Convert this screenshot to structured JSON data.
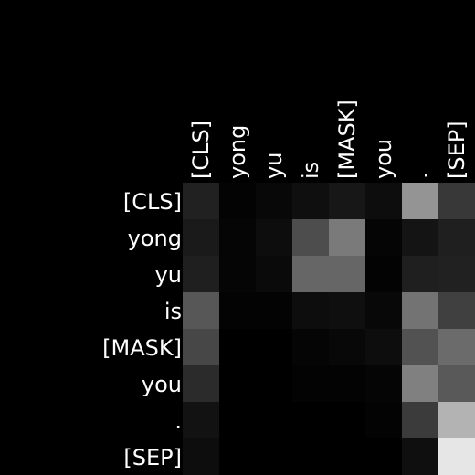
{
  "chart_data": {
    "type": "heatmap",
    "title": "",
    "xlabel": "",
    "ylabel": "",
    "x_tokens": [
      "[CLS]",
      "yong",
      "yu",
      "is",
      "[MASK]",
      "you",
      ".",
      "[SEP]"
    ],
    "y_tokens": [
      "[CLS]",
      "yong",
      "yu",
      "is",
      "[MASK]",
      "you",
      ".",
      "[SEP]"
    ],
    "x_labels_position": "top",
    "x_labels_rotation": "vertical",
    "y_labels_position": "left",
    "colormap": "grayscale",
    "vmin": 0,
    "vmax": 1,
    "values": [
      [
        0.13,
        0.01,
        0.03,
        0.06,
        0.09,
        0.05,
        0.58,
        0.22
      ],
      [
        0.1,
        0.02,
        0.05,
        0.3,
        0.48,
        0.02,
        0.08,
        0.12
      ],
      [
        0.12,
        0.02,
        0.04,
        0.4,
        0.4,
        0.01,
        0.12,
        0.13
      ],
      [
        0.34,
        0.01,
        0.01,
        0.05,
        0.06,
        0.03,
        0.45,
        0.25
      ],
      [
        0.28,
        0.0,
        0.0,
        0.02,
        0.03,
        0.05,
        0.32,
        0.42
      ],
      [
        0.17,
        0.0,
        0.0,
        0.01,
        0.01,
        0.02,
        0.5,
        0.35
      ],
      [
        0.07,
        0.0,
        0.0,
        0.0,
        0.0,
        0.01,
        0.23,
        0.7
      ],
      [
        0.05,
        0.0,
        0.0,
        0.0,
        0.0,
        0.0,
        0.06,
        0.9
      ]
    ]
  }
}
